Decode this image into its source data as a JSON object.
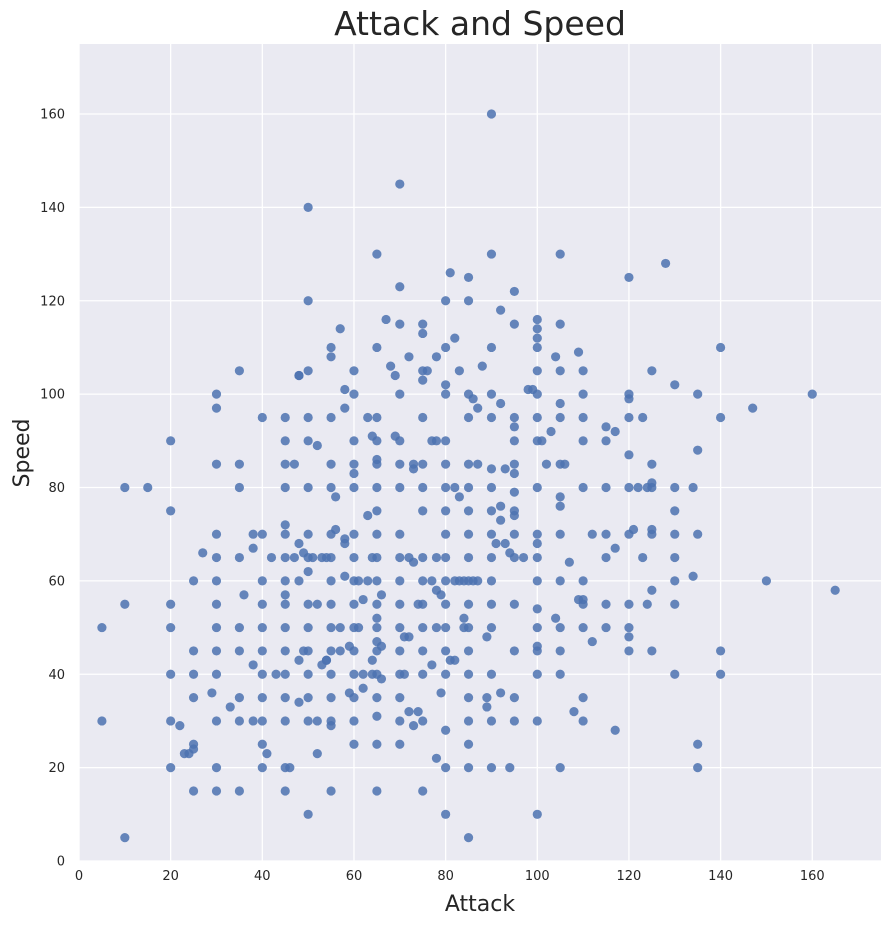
{
  "chart_data": {
    "type": "scatter",
    "title": "Attack and Speed",
    "xlabel": "Attack",
    "ylabel": "Speed",
    "xlim": [
      0,
      175
    ],
    "ylim": [
      0,
      175
    ],
    "xticks": [
      0,
      20,
      40,
      60,
      80,
      100,
      120,
      140,
      160
    ],
    "yticks": [
      0,
      20,
      40,
      60,
      80,
      100,
      120,
      140,
      160
    ],
    "grid": true,
    "background_color": "#eaeaf2",
    "marker_color": "#4c72b0",
    "points": [
      [
        5,
        50
      ],
      [
        5,
        30
      ],
      [
        10,
        80
      ],
      [
        10,
        55
      ],
      [
        10,
        5
      ],
      [
        15,
        80
      ],
      [
        20,
        90
      ],
      [
        20,
        75
      ],
      [
        20,
        55
      ],
      [
        20,
        50
      ],
      [
        20,
        40
      ],
      [
        20,
        30
      ],
      [
        20,
        20
      ],
      [
        22,
        29
      ],
      [
        23,
        23
      ],
      [
        24,
        23
      ],
      [
        25,
        60
      ],
      [
        25,
        45
      ],
      [
        25,
        40
      ],
      [
        25,
        35
      ],
      [
        25,
        25
      ],
      [
        25,
        24
      ],
      [
        25,
        15
      ],
      [
        27,
        66
      ],
      [
        29,
        36
      ],
      [
        30,
        100
      ],
      [
        30,
        97
      ],
      [
        30,
        85
      ],
      [
        30,
        70
      ],
      [
        30,
        65
      ],
      [
        30,
        60
      ],
      [
        30,
        55
      ],
      [
        30,
        50
      ],
      [
        30,
        45
      ],
      [
        30,
        40
      ],
      [
        30,
        30
      ],
      [
        30,
        20
      ],
      [
        30,
        15
      ],
      [
        33,
        33
      ],
      [
        35,
        105
      ],
      [
        35,
        85
      ],
      [
        35,
        80
      ],
      [
        35,
        65
      ],
      [
        35,
        50
      ],
      [
        35,
        45
      ],
      [
        35,
        35
      ],
      [
        35,
        30
      ],
      [
        35,
        15
      ],
      [
        36,
        57
      ],
      [
        38,
        70
      ],
      [
        38,
        42
      ],
      [
        38,
        30
      ],
      [
        38,
        67
      ],
      [
        40,
        95
      ],
      [
        40,
        70
      ],
      [
        40,
        60
      ],
      [
        40,
        55
      ],
      [
        40,
        50
      ],
      [
        40,
        45
      ],
      [
        40,
        40
      ],
      [
        40,
        35
      ],
      [
        40,
        30
      ],
      [
        40,
        25
      ],
      [
        40,
        20
      ],
      [
        41,
        23
      ],
      [
        42,
        65
      ],
      [
        43,
        40
      ],
      [
        45,
        95
      ],
      [
        45,
        90
      ],
      [
        45,
        85
      ],
      [
        45,
        80
      ],
      [
        45,
        72
      ],
      [
        45,
        70
      ],
      [
        45,
        65
      ],
      [
        45,
        60
      ],
      [
        45,
        57
      ],
      [
        45,
        55
      ],
      [
        45,
        50
      ],
      [
        45,
        45
      ],
      [
        45,
        40
      ],
      [
        45,
        35
      ],
      [
        45,
        30
      ],
      [
        45,
        20
      ],
      [
        45,
        15
      ],
      [
        46,
        20
      ],
      [
        47,
        85
      ],
      [
        47,
        65
      ],
      [
        48,
        104
      ],
      [
        48,
        104
      ],
      [
        48,
        68
      ],
      [
        48,
        60
      ],
      [
        48,
        43
      ],
      [
        48,
        34
      ],
      [
        49,
        66
      ],
      [
        49,
        45
      ],
      [
        50,
        140
      ],
      [
        50,
        120
      ],
      [
        50,
        105
      ],
      [
        50,
        95
      ],
      [
        50,
        90
      ],
      [
        50,
        80
      ],
      [
        50,
        70
      ],
      [
        50,
        65
      ],
      [
        50,
        62
      ],
      [
        50,
        55
      ],
      [
        50,
        50
      ],
      [
        50,
        45
      ],
      [
        50,
        40
      ],
      [
        50,
        35
      ],
      [
        50,
        30
      ],
      [
        50,
        10
      ],
      [
        51,
        65
      ],
      [
        52,
        89
      ],
      [
        52,
        55
      ],
      [
        52,
        30
      ],
      [
        52,
        23
      ],
      [
        53,
        65
      ],
      [
        53,
        42
      ],
      [
        54,
        65
      ],
      [
        54,
        43
      ],
      [
        54,
        43
      ],
      [
        55,
        110
      ],
      [
        55,
        108
      ],
      [
        55,
        95
      ],
      [
        55,
        85
      ],
      [
        55,
        80
      ],
      [
        55,
        70
      ],
      [
        55,
        65
      ],
      [
        55,
        60
      ],
      [
        55,
        55
      ],
      [
        55,
        50
      ],
      [
        55,
        45
      ],
      [
        55,
        40
      ],
      [
        55,
        35
      ],
      [
        55,
        30
      ],
      [
        55,
        29
      ],
      [
        55,
        15
      ],
      [
        56,
        78
      ],
      [
        56,
        71
      ],
      [
        57,
        114
      ],
      [
        57,
        50
      ],
      [
        57,
        45
      ],
      [
        58,
        101
      ],
      [
        58,
        97
      ],
      [
        58,
        69
      ],
      [
        58,
        68
      ],
      [
        58,
        61
      ],
      [
        59,
        46
      ],
      [
        59,
        36
      ],
      [
        60,
        105
      ],
      [
        60,
        100
      ],
      [
        60,
        90
      ],
      [
        60,
        85
      ],
      [
        60,
        83
      ],
      [
        60,
        80
      ],
      [
        60,
        70
      ],
      [
        60,
        65
      ],
      [
        60,
        60
      ],
      [
        60,
        55
      ],
      [
        60,
        50
      ],
      [
        60,
        45
      ],
      [
        60,
        40
      ],
      [
        60,
        35
      ],
      [
        60,
        30
      ],
      [
        60,
        25
      ],
      [
        61,
        60
      ],
      [
        61,
        50
      ],
      [
        62,
        56
      ],
      [
        62,
        40
      ],
      [
        62,
        37
      ],
      [
        63,
        74
      ],
      [
        63,
        60
      ],
      [
        63,
        95
      ],
      [
        64,
        91
      ],
      [
        64,
        65
      ],
      [
        64,
        43
      ],
      [
        64,
        40
      ],
      [
        65,
        130
      ],
      [
        65,
        110
      ],
      [
        65,
        95
      ],
      [
        65,
        90
      ],
      [
        65,
        86
      ],
      [
        65,
        85
      ],
      [
        65,
        80
      ],
      [
        65,
        75
      ],
      [
        65,
        70
      ],
      [
        65,
        65
      ],
      [
        65,
        60
      ],
      [
        65,
        55
      ],
      [
        65,
        52
      ],
      [
        65,
        50
      ],
      [
        65,
        47
      ],
      [
        65,
        45
      ],
      [
        65,
        40
      ],
      [
        65,
        35
      ],
      [
        65,
        31
      ],
      [
        65,
        25
      ],
      [
        65,
        15
      ],
      [
        66,
        57
      ],
      [
        66,
        46
      ],
      [
        66,
        39
      ],
      [
        67,
        116
      ],
      [
        68,
        106
      ],
      [
        69,
        91
      ],
      [
        69,
        104
      ],
      [
        70,
        145
      ],
      [
        70,
        123
      ],
      [
        70,
        115
      ],
      [
        70,
        100
      ],
      [
        70,
        90
      ],
      [
        70,
        85
      ],
      [
        70,
        80
      ],
      [
        70,
        70
      ],
      [
        70,
        65
      ],
      [
        70,
        60
      ],
      [
        70,
        55
      ],
      [
        70,
        50
      ],
      [
        70,
        45
      ],
      [
        70,
        40
      ],
      [
        70,
        35
      ],
      [
        70,
        30
      ],
      [
        70,
        25
      ],
      [
        71,
        48
      ],
      [
        71,
        40
      ],
      [
        72,
        108
      ],
      [
        72,
        65
      ],
      [
        72,
        48
      ],
      [
        72,
        32
      ],
      [
        73,
        85
      ],
      [
        73,
        84
      ],
      [
        73,
        64
      ],
      [
        73,
        29
      ],
      [
        74,
        55
      ],
      [
        74,
        32
      ],
      [
        75,
        115
      ],
      [
        75,
        113
      ],
      [
        75,
        105
      ],
      [
        75,
        103
      ],
      [
        75,
        95
      ],
      [
        75,
        85
      ],
      [
        75,
        80
      ],
      [
        75,
        75
      ],
      [
        75,
        65
      ],
      [
        75,
        60
      ],
      [
        75,
        55
      ],
      [
        75,
        50
      ],
      [
        75,
        45
      ],
      [
        75,
        40
      ],
      [
        75,
        30
      ],
      [
        75,
        15
      ],
      [
        76,
        105
      ],
      [
        77,
        90
      ],
      [
        77,
        60
      ],
      [
        77,
        42
      ],
      [
        78,
        108
      ],
      [
        78,
        90
      ],
      [
        78,
        65
      ],
      [
        78,
        58
      ],
      [
        78,
        50
      ],
      [
        78,
        22
      ],
      [
        79,
        57
      ],
      [
        79,
        36
      ],
      [
        80,
        120
      ],
      [
        80,
        110
      ],
      [
        80,
        102
      ],
      [
        80,
        100
      ],
      [
        80,
        90
      ],
      [
        80,
        85
      ],
      [
        80,
        80
      ],
      [
        80,
        75
      ],
      [
        80,
        70
      ],
      [
        80,
        65
      ],
      [
        80,
        60
      ],
      [
        80,
        55
      ],
      [
        80,
        50
      ],
      [
        80,
        45
      ],
      [
        80,
        40
      ],
      [
        80,
        28
      ],
      [
        80,
        20
      ],
      [
        80,
        10
      ],
      [
        81,
        126
      ],
      [
        81,
        43
      ],
      [
        82,
        112
      ],
      [
        82,
        80
      ],
      [
        82,
        60
      ],
      [
        82,
        43
      ],
      [
        83,
        105
      ],
      [
        83,
        78
      ],
      [
        83,
        60
      ],
      [
        84,
        50
      ],
      [
        84,
        60
      ],
      [
        84,
        52
      ],
      [
        85,
        125
      ],
      [
        85,
        120
      ],
      [
        85,
        100
      ],
      [
        85,
        95
      ],
      [
        85,
        85
      ],
      [
        85,
        80
      ],
      [
        85,
        75
      ],
      [
        85,
        70
      ],
      [
        85,
        65
      ],
      [
        85,
        60
      ],
      [
        85,
        55
      ],
      [
        85,
        50
      ],
      [
        85,
        45
      ],
      [
        85,
        40
      ],
      [
        85,
        35
      ],
      [
        85,
        30
      ],
      [
        85,
        25
      ],
      [
        85,
        20
      ],
      [
        85,
        5
      ],
      [
        86,
        99
      ],
      [
        86,
        60
      ],
      [
        87,
        97
      ],
      [
        87,
        85
      ],
      [
        87,
        60
      ],
      [
        88,
        106
      ],
      [
        89,
        35
      ],
      [
        89,
        33
      ],
      [
        89,
        48
      ],
      [
        90,
        160
      ],
      [
        90,
        130
      ],
      [
        90,
        110
      ],
      [
        90,
        100
      ],
      [
        90,
        95
      ],
      [
        90,
        84
      ],
      [
        90,
        80
      ],
      [
        90,
        75
      ],
      [
        90,
        70
      ],
      [
        90,
        65
      ],
      [
        90,
        60
      ],
      [
        90,
        55
      ],
      [
        90,
        50
      ],
      [
        90,
        40
      ],
      [
        90,
        30
      ],
      [
        90,
        20
      ],
      [
        91,
        68
      ],
      [
        92,
        118
      ],
      [
        92,
        98
      ],
      [
        92,
        76
      ],
      [
        92,
        73
      ],
      [
        92,
        36
      ],
      [
        93,
        84
      ],
      [
        93,
        68
      ],
      [
        94,
        66
      ],
      [
        94,
        20
      ],
      [
        95,
        122
      ],
      [
        95,
        115
      ],
      [
        95,
        95
      ],
      [
        95,
        93
      ],
      [
        95,
        90
      ],
      [
        95,
        85
      ],
      [
        95,
        83
      ],
      [
        95,
        79
      ],
      [
        95,
        75
      ],
      [
        95,
        74
      ],
      [
        95,
        70
      ],
      [
        95,
        65
      ],
      [
        95,
        55
      ],
      [
        95,
        45
      ],
      [
        95,
        35
      ],
      [
        95,
        30
      ],
      [
        97,
        65
      ],
      [
        98,
        101
      ],
      [
        99,
        101
      ],
      [
        100,
        116
      ],
      [
        100,
        114
      ],
      [
        100,
        112
      ],
      [
        100,
        110
      ],
      [
        100,
        105
      ],
      [
        100,
        100
      ],
      [
        100,
        95
      ],
      [
        100,
        90
      ],
      [
        100,
        80
      ],
      [
        100,
        70
      ],
      [
        100,
        68
      ],
      [
        100,
        65
      ],
      [
        100,
        60
      ],
      [
        100,
        54
      ],
      [
        100,
        50
      ],
      [
        100,
        46
      ],
      [
        100,
        45
      ],
      [
        100,
        40
      ],
      [
        100,
        30
      ],
      [
        100,
        10
      ],
      [
        101,
        90
      ],
      [
        102,
        85
      ],
      [
        103,
        92
      ],
      [
        104,
        52
      ],
      [
        104,
        108
      ],
      [
        105,
        130
      ],
      [
        105,
        115
      ],
      [
        105,
        105
      ],
      [
        105,
        98
      ],
      [
        105,
        95
      ],
      [
        105,
        85
      ],
      [
        105,
        78
      ],
      [
        105,
        76
      ],
      [
        105,
        70
      ],
      [
        105,
        60
      ],
      [
        105,
        50
      ],
      [
        105,
        45
      ],
      [
        105,
        40
      ],
      [
        105,
        20
      ],
      [
        106,
        85
      ],
      [
        107,
        64
      ],
      [
        108,
        32
      ],
      [
        109,
        109
      ],
      [
        109,
        56
      ],
      [
        110,
        105
      ],
      [
        110,
        100
      ],
      [
        110,
        95
      ],
      [
        110,
        90
      ],
      [
        110,
        80
      ],
      [
        110,
        60
      ],
      [
        110,
        56
      ],
      [
        110,
        55
      ],
      [
        110,
        50
      ],
      [
        110,
        35
      ],
      [
        110,
        30
      ],
      [
        112,
        70
      ],
      [
        112,
        47
      ],
      [
        115,
        93
      ],
      [
        115,
        90
      ],
      [
        115,
        80
      ],
      [
        115,
        70
      ],
      [
        115,
        65
      ],
      [
        115,
        55
      ],
      [
        115,
        50
      ],
      [
        117,
        92
      ],
      [
        117,
        67
      ],
      [
        117,
        28
      ],
      [
        120,
        125
      ],
      [
        120,
        100
      ],
      [
        120,
        99
      ],
      [
        120,
        95
      ],
      [
        120,
        87
      ],
      [
        120,
        80
      ],
      [
        120,
        70
      ],
      [
        120,
        55
      ],
      [
        120,
        50
      ],
      [
        120,
        48
      ],
      [
        120,
        45
      ],
      [
        121,
        71
      ],
      [
        122,
        80
      ],
      [
        123,
        95
      ],
      [
        123,
        65
      ],
      [
        124,
        80
      ],
      [
        124,
        55
      ],
      [
        125,
        105
      ],
      [
        125,
        85
      ],
      [
        125,
        81
      ],
      [
        125,
        80
      ],
      [
        125,
        71
      ],
      [
        125,
        70
      ],
      [
        125,
        58
      ],
      [
        125,
        45
      ],
      [
        128,
        128
      ],
      [
        130,
        102
      ],
      [
        130,
        80
      ],
      [
        130,
        75
      ],
      [
        130,
        70
      ],
      [
        130,
        65
      ],
      [
        130,
        60
      ],
      [
        130,
        55
      ],
      [
        130,
        40
      ],
      [
        134,
        80
      ],
      [
        134,
        61
      ],
      [
        135,
        100
      ],
      [
        135,
        88
      ],
      [
        135,
        70
      ],
      [
        135,
        25
      ],
      [
        135,
        20
      ],
      [
        140,
        110
      ],
      [
        140,
        95
      ],
      [
        140,
        45
      ],
      [
        140,
        40
      ],
      [
        147,
        97
      ],
      [
        150,
        60
      ],
      [
        160,
        100
      ],
      [
        165,
        58
      ]
    ]
  }
}
